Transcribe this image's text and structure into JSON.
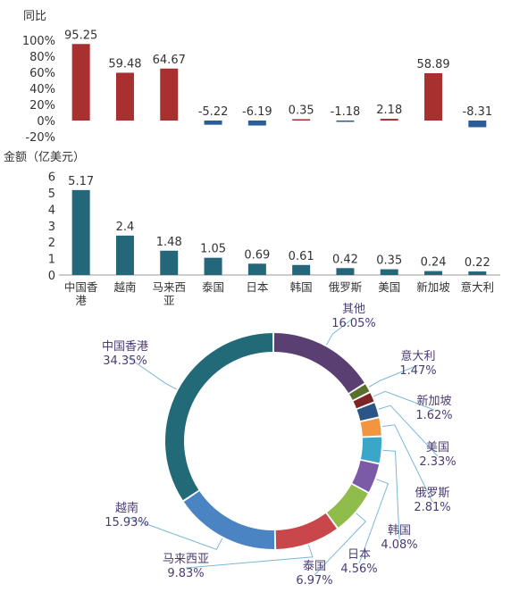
{
  "chart_data": [
    {
      "type": "bar",
      "ylabel": "同比",
      "ylim": [
        -20,
        100
      ],
      "yticks": [
        "100%",
        "80%",
        "60%",
        "40%",
        "20%",
        "0%",
        "-20%"
      ],
      "categories": [
        "中国香港",
        "越南",
        "马来西亚",
        "泰国",
        "日本",
        "韩国",
        "俄罗斯",
        "美国",
        "新加坡",
        "意大利"
      ],
      "values": [
        95.25,
        59.48,
        64.67,
        -5.22,
        -6.19,
        0.35,
        -1.18,
        2.18,
        58.89,
        -8.31
      ],
      "value_labels": [
        "95.25",
        "59.48",
        "64.67",
        "-5.22",
        "-6.19",
        "0.35",
        "-1.18",
        "2.18",
        "58.89",
        "-8.31"
      ],
      "positive_color": "#a8302f",
      "negative_color": "#2b5d9a"
    },
    {
      "type": "bar",
      "ylabel": "金额（亿美元）",
      "ylim": [
        0,
        6
      ],
      "yticks": [
        "6",
        "5",
        "4",
        "3",
        "2",
        "1",
        "0"
      ],
      "categories": [
        "中国香港",
        "越南",
        "马来西亚",
        "泰国",
        "日本",
        "韩国",
        "俄罗斯",
        "美国",
        "新加坡",
        "意大利"
      ],
      "category_lines": [
        [
          "中国香",
          "港"
        ],
        [
          "越南"
        ],
        [
          "马来西",
          "亚"
        ],
        [
          "泰国"
        ],
        [
          "日本"
        ],
        [
          "韩国"
        ],
        [
          "俄罗斯"
        ],
        [
          "美国"
        ],
        [
          "新加坡"
        ],
        [
          "意大利"
        ]
      ],
      "values": [
        5.17,
        2.4,
        1.48,
        1.05,
        0.69,
        0.61,
        0.42,
        0.35,
        0.24,
        0.22
      ],
      "value_labels": [
        "5.17",
        "2.4",
        "1.48",
        "1.05",
        "0.69",
        "0.61",
        "0.42",
        "0.35",
        "0.24",
        "0.22"
      ],
      "color": "#24677a"
    },
    {
      "type": "pie",
      "donut": true,
      "categories": [
        "其他",
        "意大利",
        "新加坡",
        "美国",
        "俄罗斯",
        "韩国",
        "日本",
        "泰国",
        "马来西亚",
        "越南",
        "中国香港"
      ],
      "values": [
        16.05,
        1.47,
        1.62,
        2.33,
        2.81,
        4.08,
        4.56,
        6.97,
        9.83,
        15.93,
        34.35
      ],
      "percent_labels": [
        "16.05%",
        "1.47%",
        "1.62%",
        "2.33%",
        "2.81%",
        "4.08%",
        "4.56%",
        "6.97%",
        "9.83%",
        "15.93%",
        "34.35%"
      ],
      "colors": [
        "#5a3f73",
        "#5a6f2b",
        "#7d2427",
        "#2a5687",
        "#f2953f",
        "#3aa6c8",
        "#7b5aa8",
        "#8fbc4a",
        "#c9474a",
        "#4a84c2",
        "#236a79"
      ]
    }
  ]
}
